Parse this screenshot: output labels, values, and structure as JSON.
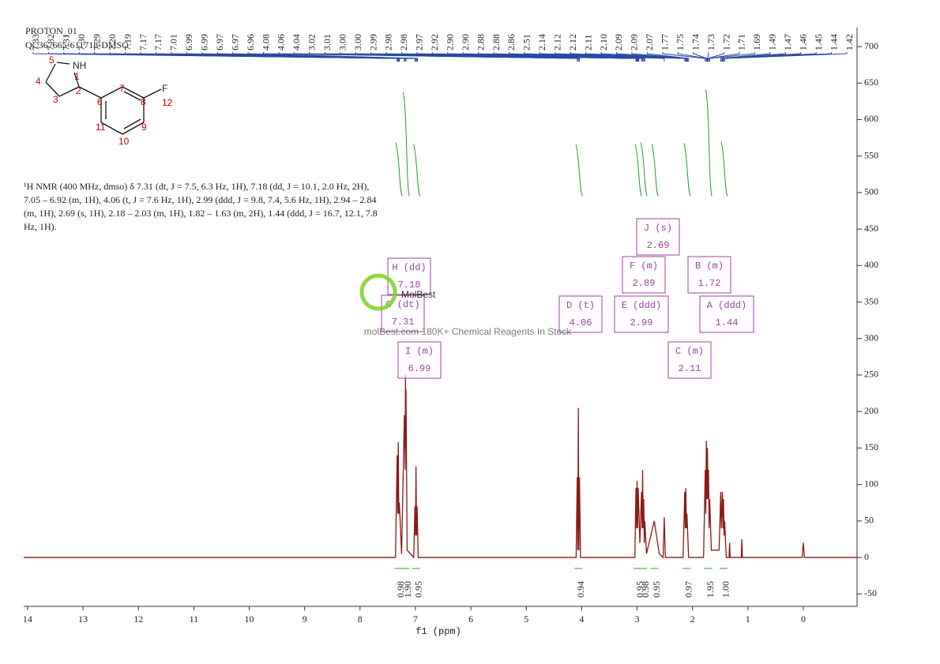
{
  "chart_data": {
    "type": "line",
    "header": [
      "PROTON_01",
      "QC367665-611718-DMSO"
    ],
    "x_label": "f1 (ppm)",
    "description": [
      "¹H NMR (400 MHz, dmso) δ 7.31 (dt, J = 7.5, 6.3 Hz, 1H), 7.18 (dd, J = 10.1, 2.0 Hz, 2H),",
      "7.05 – 6.92 (m, 1H), 4.06 (t, J = 7.6 Hz, 1H), 2.99 (ddd, J = 9.8, 7.4, 5.6 Hz, 1H), 2.94 – 2.84",
      "(m, 1H), 2.69 (s, 1H), 2.18 – 2.03 (m, 1H), 1.82 – 1.63 (m, 2H), 1.44 (ddd, J = 16.7, 12.1, 7.8",
      "Hz, 1H)."
    ],
    "watermark": [
      "MolBest",
      "molBest.com 180K+ Chemical Reagents In Stock"
    ],
    "molecule": {
      "atoms": [
        "NH",
        "1",
        "2",
        "3",
        "4",
        "5",
        "6",
        "7",
        "8",
        "9",
        "10",
        "11",
        "F",
        "12"
      ]
    },
    "x": [
      14.07,
      7.36,
      7.33,
      7.32,
      7.31,
      7.3,
      7.29,
      7.25,
      7.2,
      7.185,
      7.18,
      7.175,
      7.17,
      7.15,
      7.03,
      7.01,
      7.0,
      6.99,
      6.98,
      6.97,
      6.95,
      4.1,
      4.08,
      4.07,
      4.06,
      4.05,
      4.04,
      4.02,
      3.04,
      3.02,
      3.01,
      3.0,
      2.99,
      2.98,
      2.95,
      2.92,
      2.91,
      2.9,
      2.89,
      2.88,
      2.87,
      2.86,
      2.83,
      2.69,
      2.6,
      2.53,
      2.51,
      2.49,
      2.17,
      2.14,
      2.13,
      2.12,
      2.11,
      2.1,
      2.07,
      1.8,
      1.77,
      1.76,
      1.75,
      1.74,
      1.73,
      1.72,
      1.71,
      1.7,
      1.69,
      1.66,
      1.52,
      1.49,
      1.48,
      1.46,
      1.45,
      1.44,
      1.43,
      1.42,
      1.39,
      1.34,
      1.33,
      1.32,
      1.12,
      1.11,
      1.1,
      0.02,
      0.0,
      -0.02,
      -0.97
    ],
    "values": [
      0,
      0,
      140,
      60,
      158,
      60,
      75,
      5,
      195,
      120,
      250,
      150,
      230,
      10,
      0,
      70,
      30,
      125,
      30,
      70,
      0,
      0,
      110,
      10,
      205,
      10,
      110,
      0,
      0,
      95,
      40,
      105,
      40,
      95,
      20,
      90,
      40,
      120,
      40,
      80,
      20,
      50,
      5,
      50,
      5,
      0,
      55,
      0,
      0,
      90,
      40,
      95,
      40,
      60,
      0,
      0,
      120,
      60,
      160,
      80,
      150,
      80,
      120,
      40,
      80,
      10,
      10,
      90,
      40,
      90,
      40,
      80,
      30,
      50,
      0,
      0,
      20,
      0,
      0,
      25,
      0,
      0,
      20,
      0,
      0
    ],
    "color": "#8b1a1a",
    "xlim": [
      14.07,
      -0.97
    ],
    "ylim": [
      -67,
      726
    ],
    "xticks": [
      14,
      13,
      12,
      11,
      10,
      9,
      8,
      7,
      6,
      5,
      4,
      3,
      2,
      1,
      0
    ],
    "yticks": [
      -50,
      0,
      50,
      100,
      150,
      200,
      250,
      300,
      350,
      400,
      450,
      500,
      550,
      600,
      650,
      700
    ],
    "peak_labels": [
      "7.33",
      "7.32",
      "7.31",
      "7.30",
      "7.29",
      "7.20",
      "7.19",
      "7.17",
      "7.17",
      "7.01",
      "6.99",
      "6.99",
      "6.97",
      "6.97",
      "6.96",
      "4.08",
      "4.06",
      "4.04",
      "3.02",
      "3.01",
      "3.00",
      "3.00",
      "2.99",
      "2.98",
      "2.98",
      "2.97",
      "2.92",
      "2.90",
      "2.90",
      "2.88",
      "2.88",
      "2.86",
      "2.51",
      "2.14",
      "2.12",
      "2.12",
      "2.11",
      "2.10",
      "2.09",
      "2.09",
      "2.07",
      "1.77",
      "1.75",
      "1.74",
      "1.73",
      "1.72",
      "1.71",
      "1.69",
      "1.49",
      "1.47",
      "1.46",
      "1.45",
      "1.44",
      "1.42"
    ],
    "integrals": {
      "positions": [
        7.31,
        7.18,
        6.99,
        4.06,
        2.99,
        2.89,
        2.69,
        2.11,
        1.72,
        1.44
      ],
      "values": [
        0.98,
        1.9,
        0.95,
        0.94,
        0.95,
        0.98,
        0.95,
        0.97,
        1.95,
        1.0
      ],
      "value_labels": [
        "0.98",
        "1.90",
        "0.95",
        "0.94",
        "0.95",
        "0.98",
        "0.95",
        "0.97",
        "1.95",
        "1.00"
      ]
    },
    "multiplets": [
      [
        "H (dd)",
        "7.18"
      ],
      [
        "G (dt)",
        "7.31"
      ],
      [
        "I (m)",
        "6.99"
      ],
      [
        "D (t)",
        "4.06"
      ],
      [
        "J (s)",
        "2.69"
      ],
      [
        "F (m)",
        "2.89"
      ],
      [
        "E (ddd)",
        "2.99"
      ],
      [
        "C (m)",
        "2.11"
      ],
      [
        "B (m)",
        "1.72"
      ],
      [
        "A (ddd)",
        "1.44"
      ]
    ]
  }
}
